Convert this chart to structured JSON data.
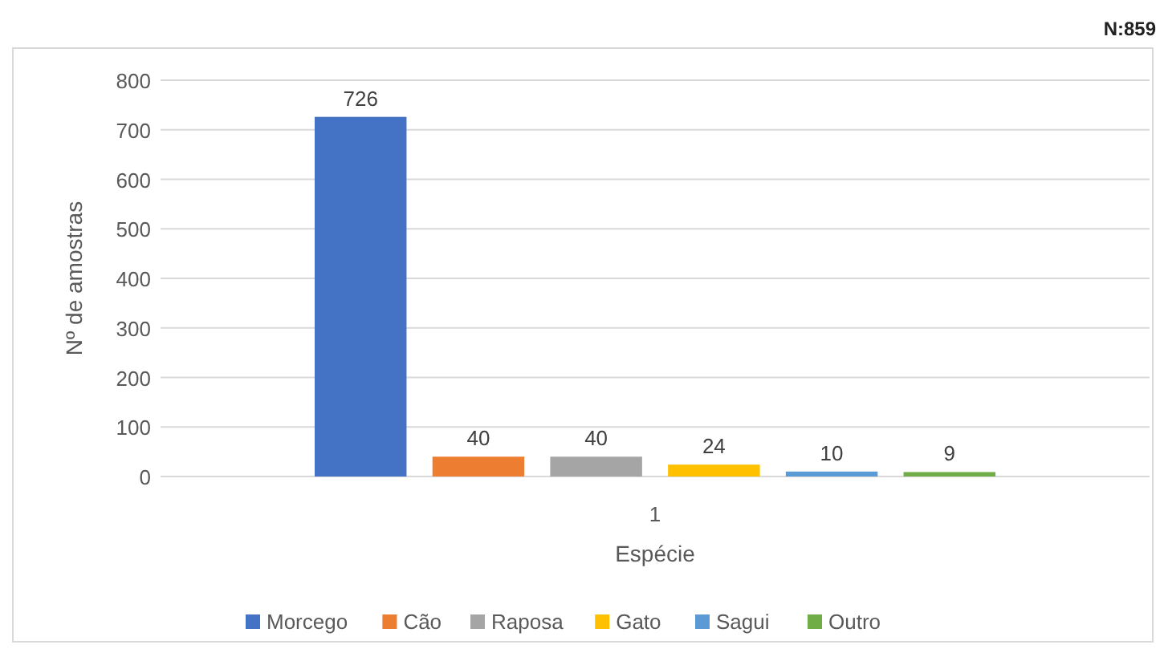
{
  "chart_data": {
    "type": "bar",
    "categories": [
      "1"
    ],
    "xlabel": "Espécie",
    "ylabel": "Nº de amostras",
    "annotations": [
      "N:859"
    ],
    "series": [
      {
        "name": "Morcego",
        "color": "#4472c4",
        "values": [
          726
        ]
      },
      {
        "name": "Cão",
        "color": "#ed7d31",
        "values": [
          40
        ]
      },
      {
        "name": "Raposa",
        "color": "#a5a5a5",
        "values": [
          40
        ]
      },
      {
        "name": "Gato",
        "color": "#ffc000",
        "values": [
          24
        ]
      },
      {
        "name": "Sagui",
        "color": "#5b9bd5",
        "values": [
          10
        ]
      },
      {
        "name": "Outro",
        "color": "#70ad47",
        "values": [
          9
        ]
      }
    ],
    "ylim": [
      0,
      800
    ],
    "yticks": [
      0,
      100,
      200,
      300,
      400,
      500,
      600,
      700,
      800
    ],
    "grid": "y",
    "legend": "bottom",
    "data_labels": true
  }
}
